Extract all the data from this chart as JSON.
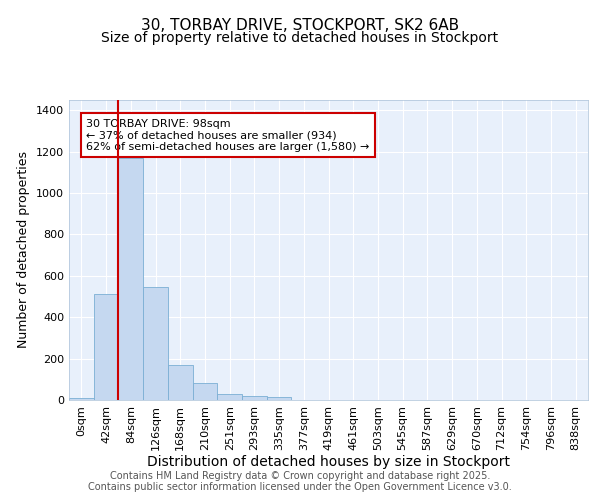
{
  "title_line1": "30, TORBAY DRIVE, STOCKPORT, SK2 6AB",
  "title_line2": "Size of property relative to detached houses in Stockport",
  "xlabel": "Distribution of detached houses by size in Stockport",
  "ylabel": "Number of detached properties",
  "bar_color": "#c5d8f0",
  "bar_edge_color": "#7bafd4",
  "fig_background_color": "#ffffff",
  "plot_background_color": "#e8f0fb",
  "grid_color": "#ffffff",
  "bin_labels": [
    "0sqm",
    "42sqm",
    "84sqm",
    "126sqm",
    "168sqm",
    "210sqm",
    "251sqm",
    "293sqm",
    "335sqm",
    "377sqm",
    "419sqm",
    "461sqm",
    "503sqm",
    "545sqm",
    "587sqm",
    "629sqm",
    "670sqm",
    "712sqm",
    "754sqm",
    "796sqm",
    "838sqm"
  ],
  "bar_values": [
    10,
    510,
    1170,
    545,
    170,
    80,
    30,
    20,
    15,
    0,
    0,
    0,
    0,
    0,
    0,
    0,
    0,
    0,
    0,
    0,
    0
  ],
  "ylim": [
    0,
    1450
  ],
  "yticks": [
    0,
    200,
    400,
    600,
    800,
    1000,
    1200,
    1400
  ],
  "property_bin_index": 2,
  "vline_x": 1.5,
  "vline_color": "#cc0000",
  "annotation_text": "30 TORBAY DRIVE: 98sqm\n← 37% of detached houses are smaller (934)\n62% of semi-detached houses are larger (1,580) →",
  "annotation_box_color": "#ffffff",
  "annotation_box_edge_color": "#cc0000",
  "footer_text": "Contains HM Land Registry data © Crown copyright and database right 2025.\nContains public sector information licensed under the Open Government Licence v3.0.",
  "title_fontsize": 11,
  "subtitle_fontsize": 10,
  "tick_fontsize": 8,
  "ylabel_fontsize": 9,
  "xlabel_fontsize": 10,
  "annotation_fontsize": 8,
  "footer_fontsize": 7
}
